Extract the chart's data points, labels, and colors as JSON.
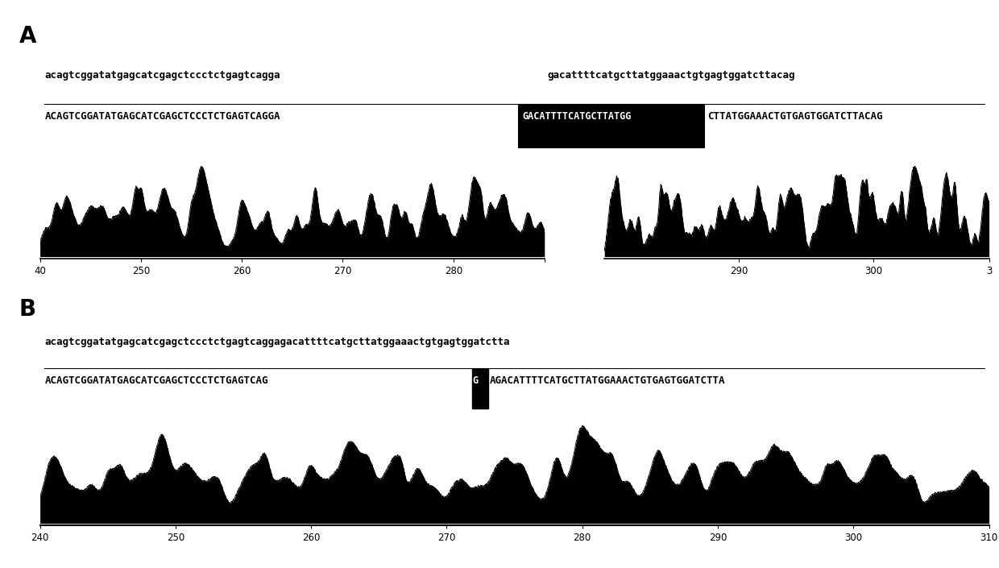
{
  "panel_A_label": "A",
  "panel_B_label": "B",
  "bg_color": "#ffffff",
  "text_color": "#000000",
  "seq_font_size": 9.0,
  "label_font_size": 20,
  "tick_font_size": 8.5,
  "panel_A_seq_top_left": "acagtcggatatgagcatcgagctccctctgagtcagga",
  "panel_A_seq_top_right": "gacattttcatgcttatggaaactgtgagtggatcttacag",
  "panel_A_seq_bot_left": "ACAGTCGGATATGAGCATCGAGCTCCCTCTGAGTCAGGA",
  "panel_A_highlight": "GACATTTTCATGCTTATGG",
  "panel_A_seq_bot_right": "CTTATGGAAACTGTGAGTGGATCTTACAG",
  "panel_B_seq_top": "acagtcggatatgagcatcgagctccctctgagtcaggagacattttcatgcttatggaaactgtgagtggatctta",
  "panel_B_seq_bot_left": "ACAGTCGGATATGAGCATCGAGCTCCCTCTGAGTCAG",
  "panel_B_highlight": "G",
  "panel_B_seq_bot_right": "AGACATTTTCATGCTTATGGAAACTGTGAGTGGATCTTA"
}
